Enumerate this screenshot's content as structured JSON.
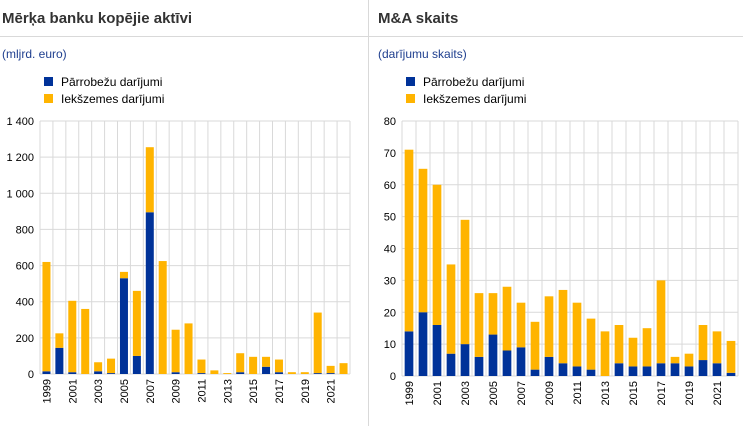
{
  "colors": {
    "cross_border": "#003299",
    "domestic": "#ffb400",
    "grid": "#d9d9d9"
  },
  "chart_data": [
    {
      "type": "bar",
      "stacked": true,
      "title": "Mērķa banku kopējie aktīvi",
      "unit_label": "(mljrd. euro)",
      "categories": [
        "1999",
        "2000",
        "2001",
        "2002",
        "2003",
        "2004",
        "2005",
        "2006",
        "2007",
        "2008",
        "2009",
        "2010",
        "2011",
        "2012",
        "2013",
        "2014",
        "2015",
        "2016",
        "2017",
        "2018",
        "2019",
        "2020",
        "2021",
        "2022"
      ],
      "x_tick_labels": [
        "1999",
        "",
        "2001",
        "",
        "2003",
        "",
        "2005",
        "",
        "2007",
        "",
        "2009",
        "",
        "2011",
        "",
        "2013",
        "",
        "2015",
        "",
        "2017",
        "",
        "2019",
        "",
        "2021",
        ""
      ],
      "y_ticks": [
        0,
        200,
        400,
        600,
        800,
        1000,
        1200,
        1400
      ],
      "y_tick_labels": [
        "0",
        "200",
        "400",
        "600",
        "800",
        "1 000",
        "1 200",
        "1 400"
      ],
      "ylim": [
        0,
        1400
      ],
      "grid": true,
      "legend_position": "top-left",
      "series": [
        {
          "name": "Pārrobežu darījumi",
          "values": [
            15,
            145,
            10,
            0,
            15,
            5,
            530,
            100,
            895,
            0,
            10,
            0,
            5,
            0,
            0,
            10,
            0,
            40,
            10,
            0,
            0,
            5,
            5,
            0
          ]
        },
        {
          "name": "Iekšzemes darījumi",
          "values": [
            605,
            80,
            395,
            360,
            50,
            80,
            35,
            360,
            360,
            625,
            235,
            280,
            75,
            20,
            5,
            105,
            95,
            55,
            70,
            10,
            10,
            335,
            40,
            60
          ]
        }
      ]
    },
    {
      "type": "bar",
      "stacked": true,
      "title": "M&A skaits",
      "unit_label": "(darījumu skaits)",
      "categories": [
        "1999",
        "2000",
        "2001",
        "2002",
        "2003",
        "2004",
        "2005",
        "2006",
        "2007",
        "2008",
        "2009",
        "2010",
        "2011",
        "2012",
        "2013",
        "2014",
        "2015",
        "2016",
        "2017",
        "2018",
        "2019",
        "2020",
        "2021",
        "2022"
      ],
      "x_tick_labels": [
        "1999",
        "",
        "2001",
        "",
        "2003",
        "",
        "2005",
        "",
        "2007",
        "",
        "2009",
        "",
        "2011",
        "",
        "2013",
        "",
        "2015",
        "",
        "2017",
        "",
        "2019",
        "",
        "2021",
        ""
      ],
      "y_ticks": [
        0,
        10,
        20,
        30,
        40,
        50,
        60,
        70,
        80
      ],
      "y_tick_labels": [
        "0",
        "10",
        "20",
        "30",
        "40",
        "50",
        "60",
        "70",
        "80"
      ],
      "ylim": [
        0,
        80
      ],
      "grid": true,
      "legend_position": "top-left",
      "series": [
        {
          "name": "Pārrobežu darījumi",
          "values": [
            14,
            20,
            16,
            7,
            10,
            6,
            13,
            8,
            9,
            2,
            6,
            4,
            3,
            2,
            0,
            4,
            3,
            3,
            4,
            4,
            3,
            5,
            4,
            1
          ]
        },
        {
          "name": "Iekšzemes darījumi",
          "values": [
            57,
            45,
            44,
            28,
            39,
            20,
            13,
            20,
            14,
            15,
            19,
            23,
            20,
            16,
            14,
            12,
            9,
            12,
            26,
            2,
            4,
            11,
            10,
            10
          ]
        }
      ]
    }
  ]
}
